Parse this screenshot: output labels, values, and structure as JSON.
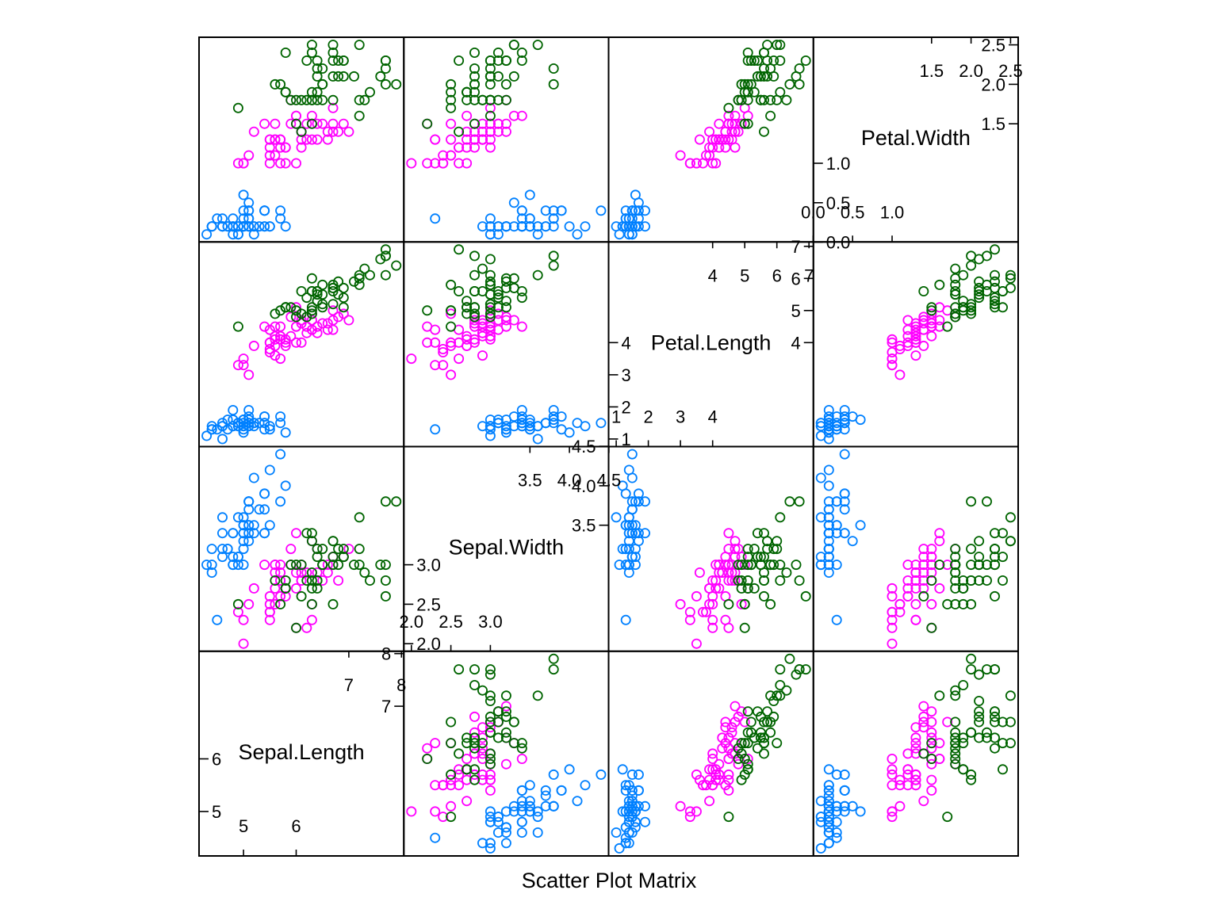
{
  "chart_data": {
    "type": "scatter",
    "title": "",
    "xlabel": "Scatter Plot Matrix",
    "variables": [
      {
        "name": "Sepal.Length",
        "range": [
          4.3,
          7.9
        ],
        "low_ticks": [
          5,
          6
        ],
        "high_ticks": [
          7,
          8
        ]
      },
      {
        "name": "Sepal.Width",
        "range": [
          2.0,
          4.4
        ],
        "low_ticks": [
          2.0,
          2.5,
          3.0
        ],
        "high_ticks": [
          3.5,
          4.0,
          4.5
        ]
      },
      {
        "name": "Petal.Length",
        "range": [
          1.0,
          6.9
        ],
        "low_ticks": [
          1,
          2,
          3,
          4
        ],
        "high_ticks": [
          4,
          5,
          6,
          7
        ]
      },
      {
        "name": "Petal.Width",
        "range": [
          0.1,
          2.5
        ],
        "low_ticks": [
          0.0,
          0.5,
          1.0
        ],
        "high_ticks": [
          1.5,
          2.0,
          2.5
        ]
      }
    ],
    "groups": [
      {
        "color": "#0080ff"
      },
      {
        "color": "#ff00ff"
      },
      {
        "color": "#006400"
      }
    ],
    "series": [
      {
        "group": 0,
        "points": [
          [
            5.1,
            3.5,
            1.4,
            0.2
          ],
          [
            4.9,
            3.0,
            1.4,
            0.2
          ],
          [
            4.7,
            3.2,
            1.3,
            0.2
          ],
          [
            4.6,
            3.1,
            1.5,
            0.2
          ],
          [
            5.0,
            3.6,
            1.4,
            0.2
          ],
          [
            5.4,
            3.9,
            1.7,
            0.4
          ],
          [
            4.6,
            3.4,
            1.4,
            0.3
          ],
          [
            5.0,
            3.4,
            1.5,
            0.2
          ],
          [
            4.4,
            2.9,
            1.4,
            0.2
          ],
          [
            4.9,
            3.1,
            1.5,
            0.1
          ],
          [
            5.4,
            3.7,
            1.5,
            0.2
          ],
          [
            4.8,
            3.4,
            1.6,
            0.2
          ],
          [
            4.8,
            3.0,
            1.4,
            0.1
          ],
          [
            4.3,
            3.0,
            1.1,
            0.1
          ],
          [
            5.8,
            4.0,
            1.2,
            0.2
          ],
          [
            5.7,
            4.4,
            1.5,
            0.4
          ],
          [
            5.4,
            3.9,
            1.3,
            0.4
          ],
          [
            5.1,
            3.5,
            1.4,
            0.3
          ],
          [
            5.7,
            3.8,
            1.7,
            0.3
          ],
          [
            5.1,
            3.8,
            1.5,
            0.3
          ],
          [
            5.4,
            3.4,
            1.7,
            0.2
          ],
          [
            5.1,
            3.7,
            1.5,
            0.4
          ],
          [
            4.6,
            3.6,
            1.0,
            0.2
          ],
          [
            5.1,
            3.3,
            1.7,
            0.5
          ],
          [
            4.8,
            3.4,
            1.9,
            0.2
          ],
          [
            5.0,
            3.0,
            1.6,
            0.2
          ],
          [
            5.0,
            3.4,
            1.6,
            0.4
          ],
          [
            5.2,
            3.5,
            1.5,
            0.2
          ],
          [
            5.2,
            3.4,
            1.4,
            0.2
          ],
          [
            4.7,
            3.2,
            1.6,
            0.2
          ],
          [
            4.8,
            3.1,
            1.6,
            0.2
          ],
          [
            5.4,
            3.4,
            1.5,
            0.4
          ],
          [
            5.2,
            4.1,
            1.5,
            0.1
          ],
          [
            5.5,
            4.2,
            1.4,
            0.2
          ],
          [
            4.9,
            3.1,
            1.5,
            0.2
          ],
          [
            5.0,
            3.2,
            1.2,
            0.2
          ],
          [
            5.5,
            3.5,
            1.3,
            0.2
          ],
          [
            4.9,
            3.6,
            1.4,
            0.1
          ],
          [
            4.4,
            3.0,
            1.3,
            0.2
          ],
          [
            5.1,
            3.4,
            1.5,
            0.2
          ],
          [
            5.0,
            3.5,
            1.3,
            0.3
          ],
          [
            4.5,
            2.3,
            1.3,
            0.3
          ],
          [
            4.4,
            3.2,
            1.3,
            0.2
          ],
          [
            5.0,
            3.5,
            1.6,
            0.6
          ],
          [
            5.1,
            3.8,
            1.9,
            0.4
          ],
          [
            4.8,
            3.0,
            1.4,
            0.3
          ],
          [
            5.1,
            3.8,
            1.6,
            0.2
          ],
          [
            4.6,
            3.2,
            1.4,
            0.2
          ],
          [
            5.3,
            3.7,
            1.5,
            0.2
          ],
          [
            5.0,
            3.3,
            1.4,
            0.2
          ]
        ]
      },
      {
        "group": 1,
        "points": [
          [
            7.0,
            3.2,
            4.7,
            1.4
          ],
          [
            6.4,
            3.2,
            4.5,
            1.5
          ],
          [
            6.9,
            3.1,
            4.9,
            1.5
          ],
          [
            5.5,
            2.3,
            4.0,
            1.3
          ],
          [
            6.5,
            2.8,
            4.6,
            1.5
          ],
          [
            5.7,
            2.8,
            4.5,
            1.3
          ],
          [
            6.3,
            3.3,
            4.7,
            1.6
          ],
          [
            4.9,
            2.4,
            3.3,
            1.0
          ],
          [
            6.6,
            2.9,
            4.6,
            1.3
          ],
          [
            5.2,
            2.7,
            3.9,
            1.4
          ],
          [
            5.0,
            2.0,
            3.5,
            1.0
          ],
          [
            5.9,
            3.0,
            4.2,
            1.5
          ],
          [
            6.0,
            2.2,
            4.0,
            1.0
          ],
          [
            6.1,
            2.9,
            4.7,
            1.4
          ],
          [
            5.6,
            2.9,
            3.6,
            1.3
          ],
          [
            6.7,
            3.1,
            4.4,
            1.4
          ],
          [
            5.6,
            3.0,
            4.5,
            1.5
          ],
          [
            5.8,
            2.7,
            4.1,
            1.0
          ],
          [
            6.2,
            2.2,
            4.5,
            1.5
          ],
          [
            5.6,
            2.5,
            3.9,
            1.1
          ],
          [
            5.9,
            3.2,
            4.8,
            1.8
          ],
          [
            6.1,
            2.8,
            4.0,
            1.3
          ],
          [
            6.3,
            2.5,
            4.9,
            1.5
          ],
          [
            6.1,
            2.8,
            4.7,
            1.2
          ],
          [
            6.4,
            2.9,
            4.3,
            1.3
          ],
          [
            6.6,
            3.0,
            4.4,
            1.4
          ],
          [
            6.8,
            2.8,
            4.8,
            1.4
          ],
          [
            6.7,
            3.0,
            5.0,
            1.7
          ],
          [
            6.0,
            2.9,
            4.5,
            1.5
          ],
          [
            5.7,
            2.6,
            3.5,
            1.0
          ],
          [
            5.5,
            2.4,
            3.8,
            1.1
          ],
          [
            5.5,
            2.4,
            3.7,
            1.0
          ],
          [
            5.8,
            2.7,
            3.9,
            1.2
          ],
          [
            6.0,
            2.7,
            5.1,
            1.6
          ],
          [
            5.4,
            3.0,
            4.5,
            1.5
          ],
          [
            6.0,
            3.4,
            4.5,
            1.6
          ],
          [
            6.7,
            3.1,
            4.7,
            1.5
          ],
          [
            6.3,
            2.3,
            4.4,
            1.3
          ],
          [
            5.6,
            3.0,
            4.1,
            1.3
          ],
          [
            5.5,
            2.5,
            4.0,
            1.3
          ],
          [
            5.5,
            2.6,
            4.4,
            1.2
          ],
          [
            6.1,
            3.0,
            4.6,
            1.4
          ],
          [
            5.8,
            2.6,
            4.0,
            1.2
          ],
          [
            5.0,
            2.3,
            3.3,
            1.0
          ],
          [
            5.6,
            2.7,
            4.2,
            1.3
          ],
          [
            5.7,
            3.0,
            4.2,
            1.2
          ],
          [
            5.7,
            2.9,
            4.2,
            1.3
          ],
          [
            6.2,
            2.9,
            4.3,
            1.3
          ],
          [
            5.1,
            2.5,
            3.0,
            1.1
          ],
          [
            5.7,
            2.8,
            4.1,
            1.3
          ]
        ]
      },
      {
        "group": 2,
        "points": [
          [
            6.3,
            3.3,
            6.0,
            2.5
          ],
          [
            5.8,
            2.7,
            5.1,
            1.9
          ],
          [
            7.1,
            3.0,
            5.9,
            2.1
          ],
          [
            6.3,
            2.9,
            5.6,
            1.8
          ],
          [
            6.5,
            3.0,
            5.8,
            2.2
          ],
          [
            7.6,
            3.0,
            6.6,
            2.1
          ],
          [
            4.9,
            2.5,
            4.5,
            1.7
          ],
          [
            7.3,
            2.9,
            6.3,
            1.8
          ],
          [
            6.7,
            2.5,
            5.8,
            1.8
          ],
          [
            7.2,
            3.6,
            6.1,
            2.5
          ],
          [
            6.5,
            3.2,
            5.1,
            2.0
          ],
          [
            6.4,
            2.7,
            5.3,
            1.9
          ],
          [
            6.8,
            3.0,
            5.5,
            2.1
          ],
          [
            5.7,
            2.5,
            5.0,
            2.0
          ],
          [
            5.8,
            2.8,
            5.1,
            2.4
          ],
          [
            6.4,
            3.2,
            5.3,
            2.3
          ],
          [
            6.5,
            3.0,
            5.5,
            1.8
          ],
          [
            7.7,
            3.8,
            6.7,
            2.2
          ],
          [
            7.7,
            2.6,
            6.9,
            2.3
          ],
          [
            6.0,
            2.2,
            5.0,
            1.5
          ],
          [
            6.9,
            3.2,
            5.7,
            2.3
          ],
          [
            5.6,
            2.8,
            4.9,
            2.0
          ],
          [
            7.7,
            2.8,
            6.7,
            2.0
          ],
          [
            6.3,
            2.7,
            4.9,
            1.8
          ],
          [
            6.7,
            3.3,
            5.7,
            2.1
          ],
          [
            7.2,
            3.2,
            6.0,
            1.8
          ],
          [
            6.2,
            2.8,
            4.8,
            1.8
          ],
          [
            6.1,
            3.0,
            4.9,
            1.8
          ],
          [
            6.4,
            2.8,
            5.6,
            2.1
          ],
          [
            7.2,
            3.0,
            5.8,
            1.6
          ],
          [
            7.4,
            2.8,
            6.1,
            1.9
          ],
          [
            7.9,
            3.8,
            6.4,
            2.0
          ],
          [
            6.4,
            2.8,
            5.6,
            2.2
          ],
          [
            6.3,
            2.8,
            5.1,
            1.5
          ],
          [
            6.1,
            2.6,
            5.6,
            1.4
          ],
          [
            7.7,
            3.0,
            6.1,
            2.3
          ],
          [
            6.3,
            3.4,
            5.6,
            2.4
          ],
          [
            6.4,
            3.1,
            5.5,
            1.8
          ],
          [
            6.0,
            3.0,
            4.8,
            1.8
          ],
          [
            6.9,
            3.1,
            5.4,
            2.1
          ],
          [
            6.7,
            3.1,
            5.6,
            2.4
          ],
          [
            6.9,
            3.1,
            5.1,
            2.3
          ],
          [
            5.8,
            2.7,
            5.1,
            1.9
          ],
          [
            6.8,
            3.2,
            5.9,
            2.3
          ],
          [
            6.7,
            3.3,
            5.7,
            2.5
          ],
          [
            6.7,
            3.0,
            5.2,
            2.3
          ],
          [
            6.3,
            2.5,
            5.0,
            1.9
          ],
          [
            6.5,
            3.0,
            5.2,
            2.0
          ],
          [
            6.2,
            3.4,
            5.4,
            2.3
          ],
          [
            5.9,
            3.0,
            5.1,
            1.8
          ]
        ]
      }
    ]
  }
}
